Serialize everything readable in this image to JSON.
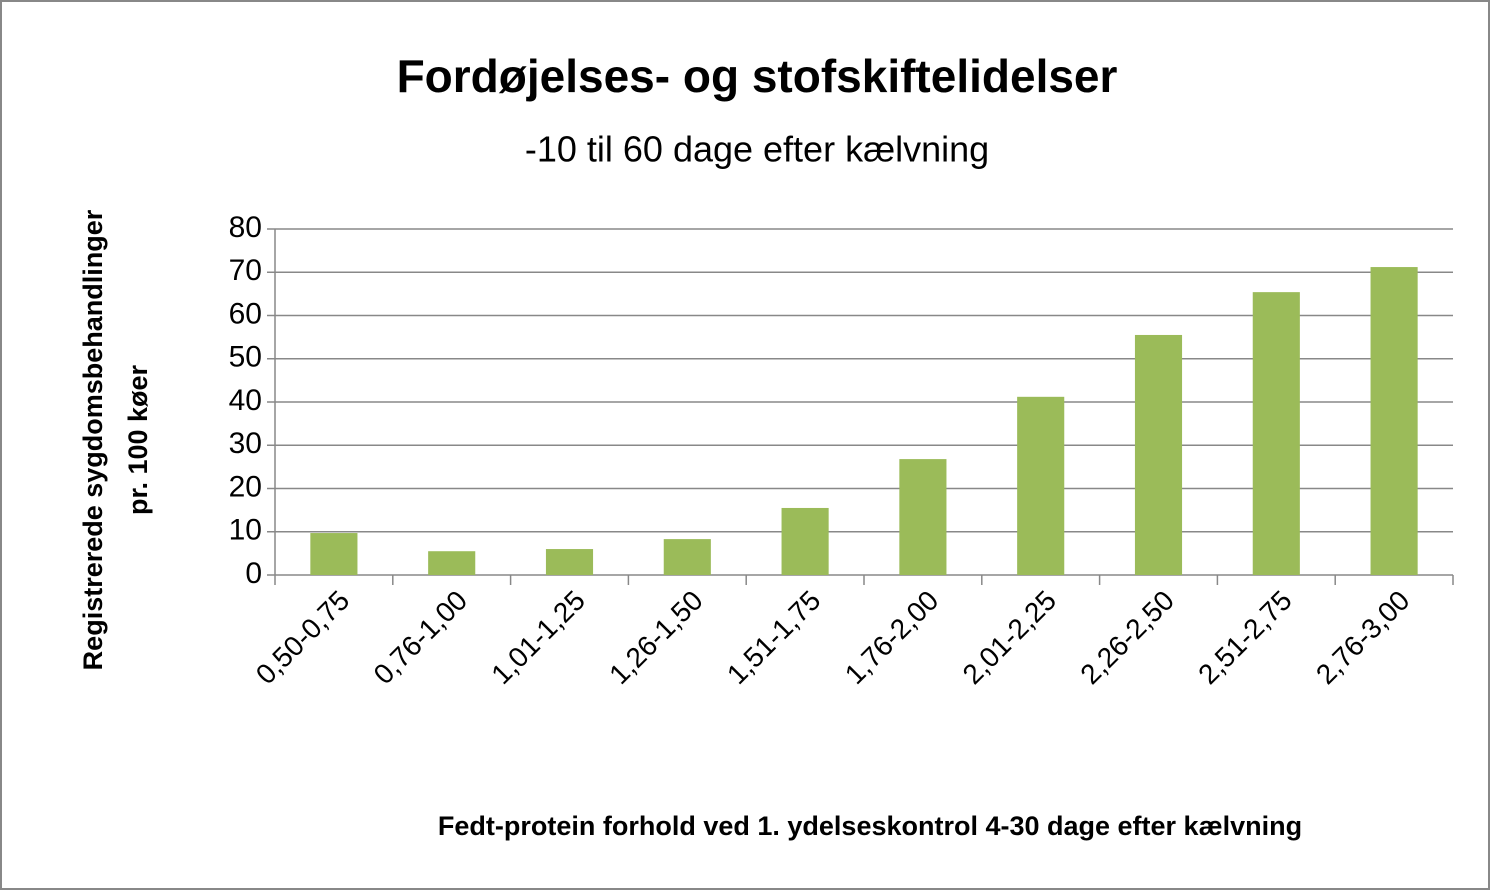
{
  "chart_data": {
    "type": "bar",
    "title": "Fordøjelses- og stofskiftelidelser",
    "subtitle": "-10 til 60 dage efter kælvning",
    "xlabel": "Fedt-protein forhold ved 1. ydelseskontrol 4-30 dage efter kælvning",
    "ylabel": [
      "Registrerede sygdomsbehandlinger",
      "pr. 100 køer"
    ],
    "categories": [
      "0,50-0,75",
      "0,76-1,00",
      "1,01-1,25",
      "1,26-1,50",
      "1,51-1,75",
      "1,76-2,00",
      "2,01-2,25",
      "2,26-2,50",
      "2,51-2,75",
      "2,76-3,00"
    ],
    "values": [
      9.7,
      5.5,
      6,
      8.3,
      15.5,
      26.8,
      41.2,
      55.5,
      65.4,
      71.2
    ],
    "color": "#9bbb59",
    "ylim": [
      0,
      80
    ],
    "yticks": [
      0,
      10,
      20,
      30,
      40,
      50,
      60,
      70,
      80
    ],
    "grid": true
  }
}
